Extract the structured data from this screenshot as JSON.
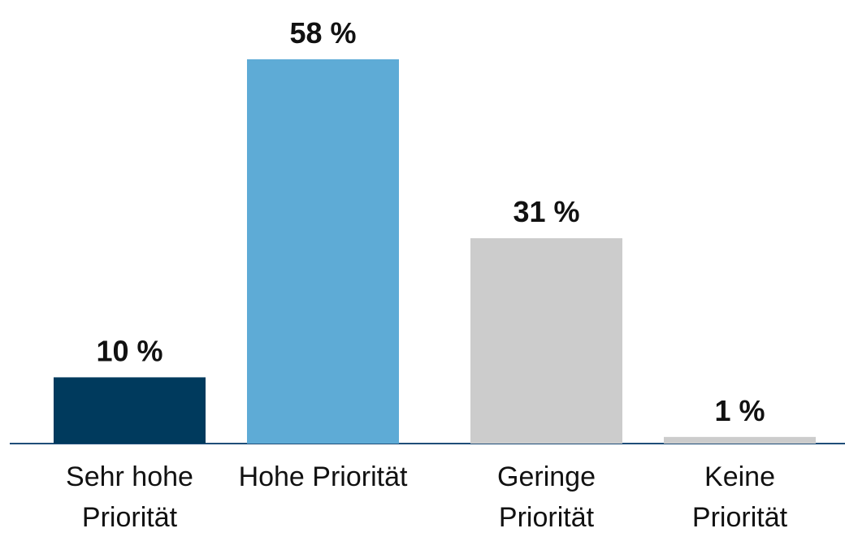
{
  "chart_data": {
    "type": "bar",
    "categories": [
      "Sehr hohe Priorität",
      "Hohe Priorität",
      "Geringe Priorität",
      "Keine Priorität"
    ],
    "values": [
      10,
      58,
      31,
      1
    ],
    "value_labels": [
      "10 %",
      "58 %",
      "31 %",
      "1 %"
    ],
    "colors": [
      "#003a5d",
      "#5eabd6",
      "#cccccc",
      "#cccccc"
    ],
    "ylim": [
      0,
      58
    ]
  }
}
